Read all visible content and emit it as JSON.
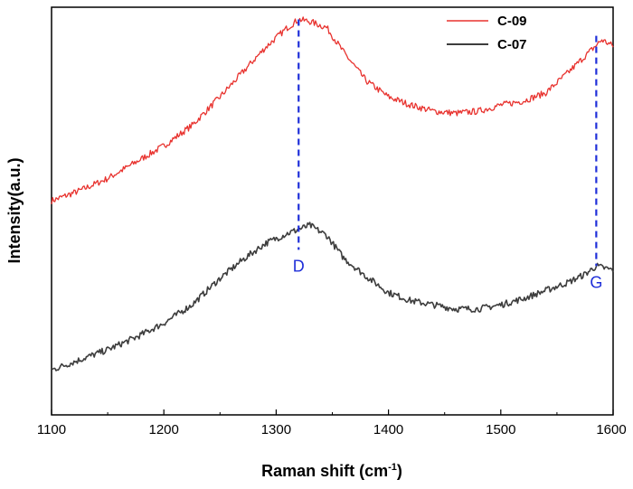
{
  "chart_data": {
    "type": "line",
    "title": "",
    "xlabel": "Raman shift (cm",
    "xlabel_sup": "-1",
    "xlabel_close": ")",
    "ylabel": "Intensity(a.u.)",
    "xlim": [
      1100,
      1600
    ],
    "ylim": [
      0,
      100
    ],
    "x_ticks": [
      1100,
      1200,
      1300,
      1400,
      1500,
      1600
    ],
    "x_tick_labels": [
      "1100",
      "1200",
      "1300",
      "1400",
      "1500",
      "1600"
    ],
    "y_ticks_shown": false,
    "legend": {
      "placement": "top-right"
    },
    "series": [
      {
        "name": "C-09",
        "color": "#e8322e",
        "x": [
          1100,
          1125,
          1150,
          1175,
          1200,
          1225,
          1250,
          1270,
          1290,
          1310,
          1320,
          1330,
          1345,
          1360,
          1380,
          1400,
          1420,
          1440,
          1460,
          1480,
          1500,
          1520,
          1540,
          1560,
          1575,
          1590,
          1600
        ],
        "y": [
          52.5,
          55,
          58,
          62,
          66,
          71,
          78,
          84,
          90,
          95,
          97,
          96.5,
          95,
          89,
          82,
          78,
          76,
          74.5,
          74,
          74.5,
          76,
          77,
          79,
          84,
          88,
          92,
          90.5
        ]
      },
      {
        "name": "C-07",
        "color": "#3d3d3d",
        "x": [
          1100,
          1125,
          1150,
          1175,
          1200,
          1225,
          1250,
          1270,
          1290,
          1310,
          1320,
          1330,
          1345,
          1360,
          1380,
          1400,
          1420,
          1440,
          1460,
          1480,
          1500,
          1520,
          1540,
          1560,
          1575,
          1585,
          1600
        ],
        "y": [
          11,
          13.5,
          16,
          19,
          22.5,
          27,
          33.5,
          38,
          42,
          44.5,
          45.5,
          46.5,
          44,
          38.5,
          34,
          30,
          28,
          27,
          26,
          26,
          27,
          28.5,
          30.5,
          32.5,
          34.5,
          36.5,
          35.5
        ]
      }
    ],
    "annotations": [
      {
        "label": "D",
        "x": 1320,
        "y_top": 97,
        "y_bottom": 40.5
      },
      {
        "label": "G",
        "x": 1585,
        "y_top": 93,
        "y_bottom": 36.5
      }
    ]
  }
}
